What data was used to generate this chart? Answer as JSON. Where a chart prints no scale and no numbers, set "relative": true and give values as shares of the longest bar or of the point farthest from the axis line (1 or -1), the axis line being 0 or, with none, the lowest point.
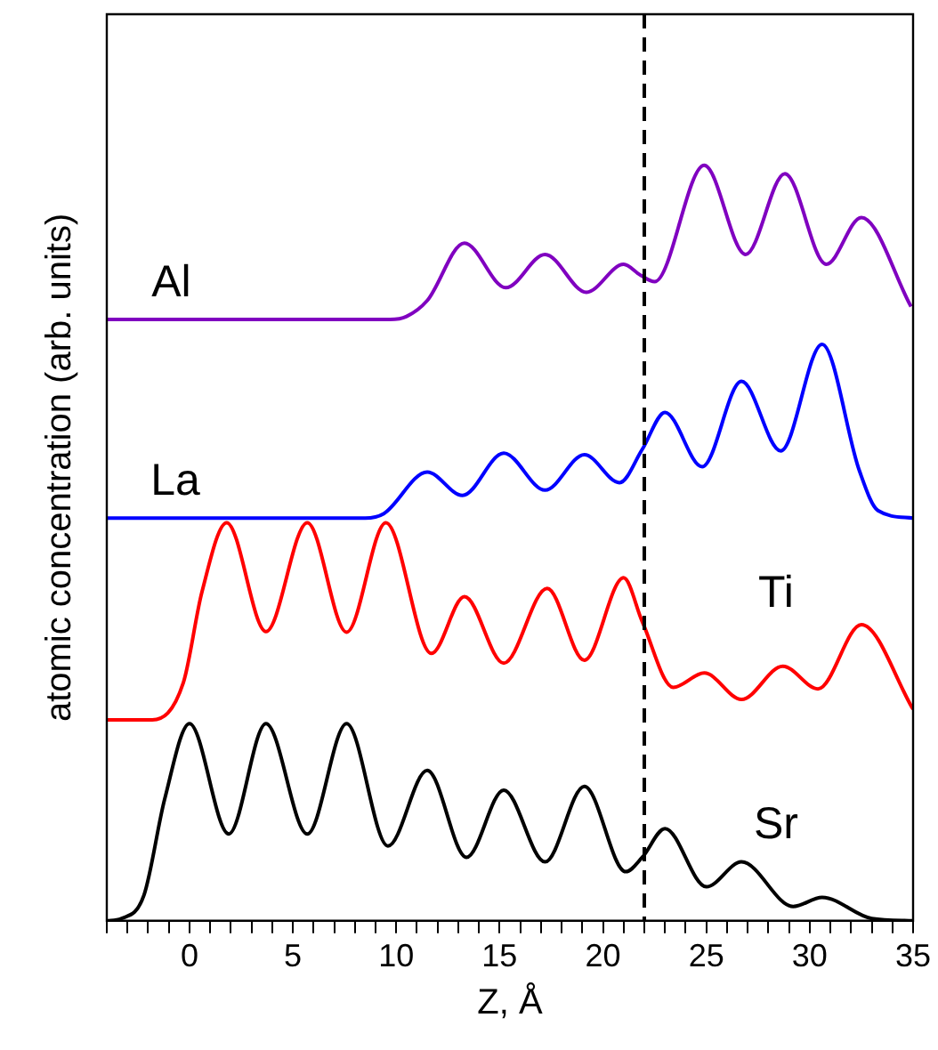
{
  "chart_data": {
    "type": "line",
    "xlabel": "Z, Å",
    "ylabel": "atomic concentration (arb. units)",
    "relative": true,
    "grid": false,
    "legend": false,
    "marker": "none",
    "line_style": "solid",
    "tick_labels": "x",
    "xlim": [
      -4,
      35
    ],
    "xticks": [
      {
        "value": -4,
        "label": null
      },
      {
        "value": -3,
        "label": null
      },
      {
        "value": -2,
        "label": null
      },
      {
        "value": -1,
        "label": null
      },
      0,
      {
        "value": 1,
        "label": null
      },
      {
        "value": 2,
        "label": null
      },
      {
        "value": 3,
        "label": null
      },
      {
        "value": 4,
        "label": null
      },
      5,
      {
        "value": 6,
        "label": null
      },
      {
        "value": 7,
        "label": null
      },
      {
        "value": 8,
        "label": null
      },
      {
        "value": 9,
        "label": null
      },
      10,
      {
        "value": 11,
        "label": null
      },
      {
        "value": 12,
        "label": null
      },
      {
        "value": 13,
        "label": null
      },
      {
        "value": 14,
        "label": null
      },
      15,
      {
        "value": 16,
        "label": null
      },
      {
        "value": 17,
        "label": null
      },
      {
        "value": 18,
        "label": null
      },
      {
        "value": 19,
        "label": null
      },
      20,
      {
        "value": 21,
        "label": null
      },
      {
        "value": 22,
        "label": null
      },
      {
        "value": 23,
        "label": null
      },
      {
        "value": 24,
        "label": null
      },
      25,
      {
        "value": 26,
        "label": null
      },
      {
        "value": 27,
        "label": null
      },
      {
        "value": 28,
        "label": null
      },
      {
        "value": 29,
        "label": null
      },
      30,
      {
        "value": 31,
        "label": null
      },
      {
        "value": 32,
        "label": null
      },
      {
        "value": 33,
        "label": null
      },
      {
        "value": 34,
        "label": null
      },
      35
    ],
    "ref_lines": [
      {
        "axis": "x",
        "value": 22,
        "color": "#000000",
        "line_style": "dashed"
      }
    ],
    "series": [
      {
        "name": "Al",
        "color": "#8000c0",
        "x": [
          -4,
          9.7,
          10.5,
          11.5,
          13.3,
          15.3,
          17.2,
          19.2,
          21.0,
          21.8,
          22.5,
          24.9,
          26.9,
          28.8,
          30.8,
          32.5,
          34.9
        ],
        "values": [
          0.796,
          0.796,
          0.8,
          0.821,
          0.897,
          0.838,
          0.882,
          0.832,
          0.869,
          0.855,
          0.846,
          1,
          0.882,
          0.989,
          0.869,
          0.931,
          0.813
        ]
      },
      {
        "name": "La",
        "color": "#0000ff",
        "x": [
          -4,
          8.5,
          9.4,
          11.5,
          13.2,
          15.2,
          17.2,
          19.1,
          20.8,
          21.9,
          23.0,
          24.8,
          26.7,
          28.6,
          30.6,
          32.4,
          33.3,
          35
        ],
        "values": [
          0.533,
          0.533,
          0.539,
          0.594,
          0.563,
          0.619,
          0.57,
          0.617,
          0.58,
          0.624,
          0.673,
          0.601,
          0.714,
          0.622,
          0.763,
          0.596,
          0.543,
          0.533
        ]
      },
      {
        "name": "Ti",
        "color": "#ff0000",
        "x": [
          -4,
          -1.8,
          -0.3,
          0.6,
          1.8,
          3.7,
          5.7,
          7.6,
          9.5,
          11.7,
          13.3,
          15.2,
          17.3,
          19.1,
          21.0,
          21.9,
          23.4,
          24.9,
          26.7,
          28.7,
          30.4,
          32.5,
          35
        ],
        "values": [
          0.266,
          0.266,
          0.315,
          0.435,
          0.527,
          0.383,
          0.527,
          0.382,
          0.527,
          0.354,
          0.429,
          0.341,
          0.44,
          0.345,
          0.454,
          0.396,
          0.309,
          0.328,
          0.293,
          0.337,
          0.307,
          0.392,
          0.28
        ]
      },
      {
        "name": "Sr",
        "color": "#000000",
        "x": [
          -4,
          -3.3,
          -2.2,
          -1.2,
          0,
          1.9,
          3.7,
          5.7,
          7.6,
          9.6,
          11.5,
          13.4,
          15.2,
          17.2,
          19.1,
          21.1,
          21.9,
          23.0,
          25.0,
          26.7,
          29.2,
          30.6,
          33.0,
          35
        ],
        "values": [
          0,
          0.003,
          0.034,
          0.161,
          0.261,
          0.115,
          0.261,
          0.115,
          0.261,
          0.099,
          0.199,
          0.084,
          0.173,
          0.078,
          0.178,
          0.065,
          0.084,
          0.122,
          0.045,
          0.078,
          0.019,
          0.031,
          0.003,
          0
        ]
      }
    ]
  }
}
